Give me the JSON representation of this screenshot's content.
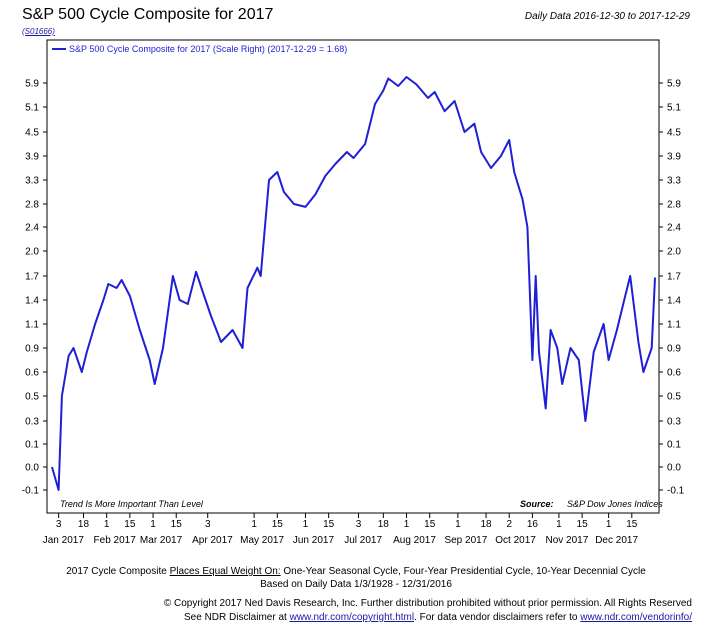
{
  "header": {
    "title": "S&P 500 Cycle Composite for 2017",
    "code": "(S01666)",
    "date_range": "Daily Data 2016-12-30 to 2017-12-29"
  },
  "chart_data": {
    "type": "line",
    "title": "S&P 500 Cycle Composite for 2017",
    "legend": "S&P 500 Cycle Composite for 2017 (Scale Right) (2017-12-29 = 1.68)",
    "legend_placement": "top-left",
    "line_color": "#1f1fd6",
    "grid": false,
    "y_scale_note": "nonlinear (right-hand scale)",
    "y_ticks": [
      -0.1,
      0.0,
      0.1,
      0.3,
      0.5,
      0.6,
      0.9,
      1.1,
      1.4,
      1.7,
      2.0,
      2.4,
      2.8,
      3.3,
      3.9,
      4.5,
      5.1,
      5.9
    ],
    "y_tick_labels": [
      "-0.1",
      "0.0",
      "0.1",
      "0.3",
      "0.5",
      "0.6",
      "0.9",
      "1.1",
      "1.4",
      "1.7",
      "2.0",
      "2.4",
      "2.8",
      "3.3",
      "3.9",
      "4.5",
      "5.1",
      "5.9"
    ],
    "x_day_ticks": [
      "3",
      "18",
      "1",
      "15",
      "1",
      "15",
      "3",
      "1",
      "15",
      "1",
      "15",
      "3",
      "18",
      "1",
      "15",
      "1",
      "18",
      "2",
      "16",
      "1",
      "15",
      "1",
      "15"
    ],
    "x_day_tick_dates": [
      "2017-01-03",
      "2017-01-18",
      "2017-02-01",
      "2017-02-15",
      "2017-03-01",
      "2017-03-15",
      "2017-04-03",
      "2017-05-01",
      "2017-05-15",
      "2017-06-01",
      "2017-06-15",
      "2017-07-03",
      "2017-07-18",
      "2017-08-01",
      "2017-08-15",
      "2017-09-01",
      "2017-09-18",
      "2017-10-02",
      "2017-10-16",
      "2017-11-01",
      "2017-11-15",
      "2017-12-01",
      "2017-12-15"
    ],
    "x_month_labels": [
      "Jan 2017",
      "Feb 2017",
      "Mar 2017",
      "Apr 2017",
      "May 2017",
      "Jun 2017",
      "Jul 2017",
      "Aug 2017",
      "Sep 2017",
      "Oct 2017",
      "Nov 2017",
      "Dec 2017"
    ],
    "x_month_label_dates": [
      "2017-01-01",
      "2017-02-01",
      "2017-03-01",
      "2017-04-01",
      "2017-05-01",
      "2017-06-01",
      "2017-07-01",
      "2017-08-01",
      "2017-09-01",
      "2017-10-01",
      "2017-11-01",
      "2017-12-01"
    ],
    "x_range": [
      "2016-12-30",
      "2017-12-29"
    ],
    "series": [
      {
        "x": [
          "2016-12-30",
          "2017-01-03",
          "2017-01-05",
          "2017-01-09",
          "2017-01-12",
          "2017-01-17",
          "2017-01-20",
          "2017-01-25",
          "2017-01-30",
          "2017-02-02",
          "2017-02-07",
          "2017-02-10",
          "2017-02-15",
          "2017-02-21",
          "2017-02-27",
          "2017-03-02",
          "2017-03-07",
          "2017-03-13",
          "2017-03-17",
          "2017-03-22",
          "2017-03-27",
          "2017-03-31",
          "2017-04-05",
          "2017-04-11",
          "2017-04-18",
          "2017-04-24",
          "2017-04-27",
          "2017-05-03",
          "2017-05-05",
          "2017-05-10",
          "2017-05-15",
          "2017-05-19",
          "2017-05-25",
          "2017-06-01",
          "2017-06-07",
          "2017-06-13",
          "2017-06-19",
          "2017-06-26",
          "2017-06-30",
          "2017-07-07",
          "2017-07-13",
          "2017-07-18",
          "2017-07-21",
          "2017-07-27",
          "2017-08-01",
          "2017-08-07",
          "2017-08-14",
          "2017-08-18",
          "2017-08-24",
          "2017-08-30",
          "2017-09-05",
          "2017-09-11",
          "2017-09-15",
          "2017-09-21",
          "2017-09-27",
          "2017-10-02",
          "2017-10-05",
          "2017-10-10",
          "2017-10-13",
          "2017-10-16",
          "2017-10-18",
          "2017-10-20",
          "2017-10-24",
          "2017-10-27",
          "2017-10-31",
          "2017-11-03",
          "2017-11-08",
          "2017-11-13",
          "2017-11-17",
          "2017-11-22",
          "2017-11-28",
          "2017-12-01",
          "2017-12-06",
          "2017-12-11",
          "2017-12-14",
          "2017-12-19",
          "2017-12-22",
          "2017-12-27",
          "2017-12-29"
        ],
        "y": [
          0.0,
          -0.1,
          0.5,
          0.8,
          0.9,
          0.6,
          0.85,
          1.1,
          1.4,
          1.6,
          1.55,
          1.65,
          1.45,
          1.05,
          0.75,
          0.55,
          0.9,
          1.7,
          1.4,
          1.35,
          1.75,
          1.5,
          1.2,
          0.95,
          1.05,
          0.9,
          1.55,
          1.8,
          1.7,
          3.3,
          3.5,
          3.05,
          2.8,
          2.75,
          3.0,
          3.4,
          3.7,
          4.0,
          3.85,
          4.2,
          5.2,
          5.65,
          6.05,
          5.8,
          6.1,
          5.85,
          5.4,
          5.6,
          5.0,
          5.3,
          4.5,
          4.7,
          4.0,
          3.6,
          3.9,
          4.3,
          3.5,
          2.9,
          2.4,
          0.75,
          1.7,
          0.85,
          0.4,
          1.05,
          0.9,
          0.55,
          0.9,
          0.75,
          0.3,
          0.85,
          1.1,
          0.75,
          1.05,
          1.45,
          1.7,
          0.95,
          0.6,
          0.9,
          1.68
        ]
      }
    ],
    "annotations": [
      "Trend Is More Important Than Level"
    ],
    "source_label": "Source:",
    "source_text": "S&P Dow Jones Indices"
  },
  "footer": {
    "line1_prefix": "2017 Cycle Composite ",
    "line1_underlined": "Places Equal Weight On:",
    "line1_suffix": " One-Year Seasonal Cycle, Four-Year Presidential Cycle, 10-Year Decennial Cycle",
    "line2": "Based on Daily Data 1/3/1928 - 12/31/2016",
    "copyright": "© Copyright 2017 Ned Davis Research, Inc. Further distribution prohibited without prior permission. All Rights Reserved",
    "disclaimer_prefix": "See NDR Disclaimer at ",
    "disclaimer_link1": "www.ndr.com/copyright.html",
    "disclaimer_mid": ". For data vendor disclaimers refer to ",
    "disclaimer_link2": "www.ndr.com/vendorinfo/"
  }
}
